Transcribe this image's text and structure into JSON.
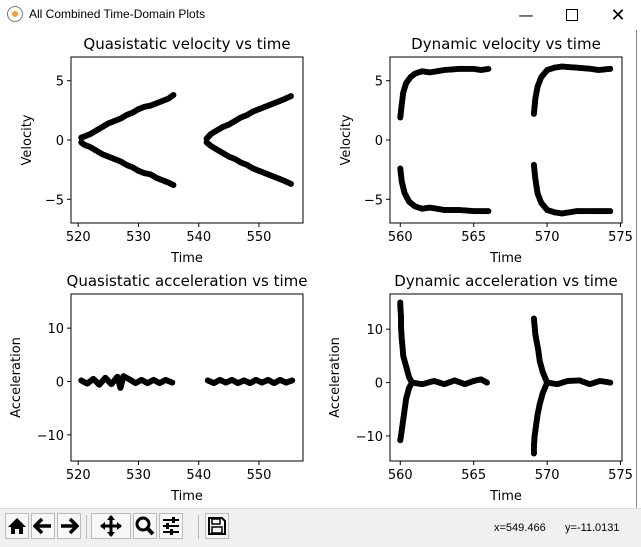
{
  "window": {
    "title": "All Combined Time-Domain Plots",
    "controls": [
      "minimize",
      "maximize",
      "close"
    ]
  },
  "toolbar": {
    "buttons": [
      "home-icon",
      "back-arrow-icon",
      "forward-arrow-icon",
      "pan-icon",
      "zoom-magnifier-icon",
      "configure-subplots-icon",
      "save-floppy-icon"
    ],
    "x_readout": "x=549.466",
    "y_readout": "y=-11.0131"
  },
  "chart_data": [
    {
      "type": "scatter",
      "title": "Quasistatic velocity vs time",
      "xlabel": "Time",
      "ylabel": "Velocity",
      "xlim": [
        518.8,
        557.3
      ],
      "ylim": [
        -7,
        7
      ],
      "xticks": [
        520,
        530,
        540,
        550
      ],
      "xtick_labels": [
        "520",
        "530",
        "540",
        "550"
      ],
      "yticks": [
        -5,
        0,
        5
      ],
      "ytick_labels": [
        "−5",
        "0",
        "5"
      ],
      "color": "#000000",
      "series": [
        {
          "points": [
            [
              520.5,
              0.2
            ],
            [
              521,
              0.3
            ],
            [
              522,
              0.5
            ],
            [
              523,
              0.8
            ],
            [
              524,
              1.1
            ],
            [
              525,
              1.4
            ],
            [
              526,
              1.6
            ],
            [
              527,
              1.8
            ],
            [
              528,
              2.1
            ],
            [
              529,
              2.3
            ],
            [
              530,
              2.6
            ],
            [
              531,
              2.8
            ],
            [
              532,
              2.9
            ],
            [
              533,
              3.1
            ],
            [
              534,
              3.3
            ],
            [
              535,
              3.5
            ],
            [
              535.8,
              3.8
            ]
          ]
        },
        {
          "points": [
            [
              520.5,
              -0.2
            ],
            [
              521,
              -0.4
            ],
            [
              522,
              -0.6
            ],
            [
              523,
              -0.9
            ],
            [
              524,
              -1.2
            ],
            [
              525,
              -1.4
            ],
            [
              526,
              -1.6
            ],
            [
              527,
              -1.8
            ],
            [
              528,
              -2.1
            ],
            [
              529,
              -2.3
            ],
            [
              530,
              -2.6
            ],
            [
              531,
              -2.8
            ],
            [
              532,
              -2.9
            ],
            [
              533,
              -3.2
            ],
            [
              534,
              -3.4
            ],
            [
              535,
              -3.6
            ],
            [
              535.8,
              -3.8
            ]
          ]
        },
        {
          "points": [
            [
              541.3,
              0.1
            ],
            [
              542,
              0.5
            ],
            [
              543,
              0.8
            ],
            [
              544,
              1.1
            ],
            [
              545,
              1.3
            ],
            [
              546,
              1.6
            ],
            [
              547,
              1.9
            ],
            [
              548,
              2.1
            ],
            [
              549,
              2.4
            ],
            [
              550,
              2.6
            ],
            [
              551,
              2.8
            ],
            [
              552,
              3.0
            ],
            [
              553,
              3.2
            ],
            [
              554,
              3.4
            ],
            [
              555.3,
              3.7
            ]
          ]
        },
        {
          "points": [
            [
              541.3,
              -0.2
            ],
            [
              542,
              -0.5
            ],
            [
              543,
              -0.8
            ],
            [
              544,
              -1.1
            ],
            [
              545,
              -1.4
            ],
            [
              546,
              -1.6
            ],
            [
              547,
              -1.9
            ],
            [
              548,
              -2.1
            ],
            [
              549,
              -2.4
            ],
            [
              550,
              -2.6
            ],
            [
              551,
              -2.8
            ],
            [
              552,
              -3.0
            ],
            [
              553,
              -3.2
            ],
            [
              554,
              -3.4
            ],
            [
              555.3,
              -3.7
            ]
          ]
        }
      ]
    },
    {
      "type": "scatter",
      "title": "Dynamic velocity vs time",
      "xlabel": "Time",
      "ylabel": "Velocity",
      "xlim": [
        559.3,
        575.1
      ],
      "ylim": [
        -7,
        7
      ],
      "xticks": [
        560,
        565,
        570,
        575
      ],
      "xtick_labels": [
        "560",
        "565",
        "570",
        "575"
      ],
      "yticks": [
        -5,
        0,
        5
      ],
      "ytick_labels": [
        "−5",
        "0",
        "5"
      ],
      "color": "#000000",
      "series": [
        {
          "points": [
            [
              560,
              1.9
            ],
            [
              560.1,
              3
            ],
            [
              560.2,
              4
            ],
            [
              560.4,
              4.8
            ],
            [
              560.7,
              5.3
            ],
            [
              561,
              5.6
            ],
            [
              561.5,
              5.8
            ],
            [
              562,
              5.7
            ],
            [
              563,
              5.9
            ],
            [
              564,
              6.0
            ],
            [
              565,
              6.0
            ],
            [
              565.5,
              5.9
            ],
            [
              566,
              6.0
            ]
          ]
        },
        {
          "points": [
            [
              560,
              -2.4
            ],
            [
              560.1,
              -3.5
            ],
            [
              560.3,
              -4.5
            ],
            [
              560.6,
              -5.2
            ],
            [
              561,
              -5.6
            ],
            [
              561.5,
              -5.8
            ],
            [
              562,
              -5.7
            ],
            [
              563,
              -5.9
            ],
            [
              564,
              -5.9
            ],
            [
              565,
              -6.0
            ],
            [
              566,
              -6.0
            ]
          ]
        },
        {
          "points": [
            [
              569.1,
              2.2
            ],
            [
              569.2,
              3.5
            ],
            [
              569.35,
              4.5
            ],
            [
              569.6,
              5.3
            ],
            [
              570,
              5.9
            ],
            [
              570.5,
              6.1
            ],
            [
              571,
              6.2
            ],
            [
              572,
              6.1
            ],
            [
              573,
              6.0
            ],
            [
              573.5,
              5.9
            ],
            [
              574.3,
              6.0
            ]
          ]
        },
        {
          "points": [
            [
              569.1,
              -2.1
            ],
            [
              569.2,
              -3.3
            ],
            [
              569.35,
              -4.5
            ],
            [
              569.6,
              -5.3
            ],
            [
              570,
              -5.9
            ],
            [
              570.5,
              -6.1
            ],
            [
              571,
              -6.2
            ],
            [
              572,
              -6.0
            ],
            [
              573,
              -6.0
            ],
            [
              574.3,
              -6.0
            ]
          ]
        }
      ]
    },
    {
      "type": "scatter",
      "title": "Quasistatic acceleration vs time",
      "xlabel": "Time",
      "ylabel": "Acceleration",
      "xlim": [
        518.8,
        557.3
      ],
      "ylim": [
        -14.9,
        16.4
      ],
      "xticks": [
        520,
        530,
        540,
        550
      ],
      "xtick_labels": [
        "520",
        "530",
        "540",
        "550"
      ],
      "yticks": [
        -10,
        0,
        10
      ],
      "ytick_labels": [
        "−10",
        "0",
        "10"
      ],
      "color": "#000000",
      "series": [
        {
          "points": [
            [
              520.5,
              0.2
            ],
            [
              521.5,
              -0.4
            ],
            [
              522.5,
              0.5
            ],
            [
              523.5,
              -0.6
            ],
            [
              524.5,
              0.7
            ],
            [
              525.5,
              -0.5
            ],
            [
              526.5,
              0.9
            ],
            [
              527,
              -1.2
            ],
            [
              527.5,
              1.0
            ],
            [
              528.5,
              0.4
            ],
            [
              529.5,
              -0.3
            ],
            [
              530.5,
              0.3
            ],
            [
              531.5,
              -0.3
            ],
            [
              532.5,
              0.3
            ],
            [
              533.5,
              -0.3
            ],
            [
              534.5,
              0.3
            ],
            [
              535.6,
              -0.2
            ]
          ]
        },
        {
          "points": [
            [
              541.5,
              0.2
            ],
            [
              542.5,
              -0.3
            ],
            [
              543.5,
              0.3
            ],
            [
              544.5,
              -0.2
            ],
            [
              545.5,
              0.3
            ],
            [
              546.5,
              -0.3
            ],
            [
              547.5,
              0.2
            ],
            [
              548.5,
              -0.3
            ],
            [
              549.5,
              0.3
            ],
            [
              550.5,
              -0.2
            ],
            [
              551.5,
              0.3
            ],
            [
              552.5,
              -0.3
            ],
            [
              553.5,
              0.3
            ],
            [
              554.5,
              -0.2
            ],
            [
              555.5,
              0.2
            ]
          ]
        }
      ]
    },
    {
      "type": "scatter",
      "title": "Dynamic acceleration vs time",
      "xlabel": "Time",
      "ylabel": "Acceleration",
      "xlim": [
        559.3,
        575.1
      ],
      "ylim": [
        -14.7,
        16.6
      ],
      "xticks": [
        560,
        565,
        570,
        575
      ],
      "xtick_labels": [
        "560",
        "565",
        "570",
        "575"
      ],
      "yticks": [
        -10,
        0,
        10
      ],
      "ytick_labels": [
        "−10",
        "0",
        "10"
      ],
      "color": "#000000",
      "series": [
        {
          "points": [
            [
              560,
              15
            ],
            [
              560,
              14.5
            ],
            [
              560.05,
              12.2
            ],
            [
              560.05,
              10.5
            ],
            [
              560.1,
              8.2
            ],
            [
              560.15,
              6.8
            ],
            [
              560.2,
              5
            ],
            [
              560.4,
              3
            ],
            [
              560.6,
              1
            ],
            [
              560.8,
              0
            ]
          ]
        },
        {
          "points": [
            [
              560,
              -10.8
            ],
            [
              560.1,
              -9
            ],
            [
              560.2,
              -7
            ],
            [
              560.3,
              -5
            ],
            [
              560.4,
              -3
            ],
            [
              560.6,
              -1
            ],
            [
              560.8,
              0
            ]
          ]
        },
        {
          "points": [
            [
              560.8,
              0
            ],
            [
              561.5,
              -0.3
            ],
            [
              562.3,
              0.3
            ],
            [
              563,
              -0.3
            ],
            [
              563.7,
              0.4
            ],
            [
              564.4,
              -0.3
            ],
            [
              565,
              0.3
            ],
            [
              565.5,
              0.6
            ],
            [
              565.9,
              0
            ]
          ]
        },
        {
          "points": [
            [
              569.1,
              12
            ],
            [
              569.15,
              10.5
            ],
            [
              569.2,
              9
            ],
            [
              569.3,
              7.5
            ],
            [
              569.4,
              6
            ],
            [
              569.5,
              4
            ],
            [
              569.7,
              2
            ],
            [
              570,
              0
            ]
          ]
        },
        {
          "points": [
            [
              569.1,
              -13.3
            ],
            [
              569.1,
              -12
            ],
            [
              569.15,
              -10
            ],
            [
              569.25,
              -8
            ],
            [
              569.35,
              -6
            ],
            [
              569.5,
              -4
            ],
            [
              569.7,
              -2
            ],
            [
              570,
              0
            ]
          ]
        },
        {
          "points": [
            [
              570,
              0
            ],
            [
              570.7,
              -0.3
            ],
            [
              571.4,
              0.3
            ],
            [
              572.2,
              0.4
            ],
            [
              572.9,
              -0.3
            ],
            [
              573.6,
              0.3
            ],
            [
              574.3,
              0
            ]
          ]
        }
      ]
    }
  ]
}
